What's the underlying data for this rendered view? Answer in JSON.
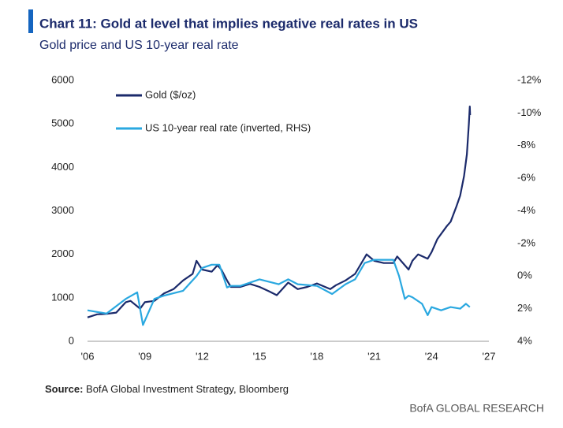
{
  "chart_data": {
    "type": "line",
    "title": "Chart 11: Gold at level that implies negative real rates in US",
    "subtitle": "Gold price and US 10-year real rate",
    "source_label": "Source:",
    "source": "BofA Global Investment Strategy, Bloomberg",
    "brand": "BofA GLOBAL RESEARCH",
    "xlim": [
      2006,
      2027
    ],
    "xticks": [
      {
        "value": 2006,
        "label": "'06"
      },
      {
        "value": 2009,
        "label": "'09"
      },
      {
        "value": 2012,
        "label": "'12"
      },
      {
        "value": 2015,
        "label": "'15"
      },
      {
        "value": 2018,
        "label": "'18"
      },
      {
        "value": 2021,
        "label": "'21"
      },
      {
        "value": 2024,
        "label": "'24"
      },
      {
        "value": 2027,
        "label": "'27"
      }
    ],
    "ylim": [
      0,
      6000
    ],
    "yticks": [
      0,
      1000,
      2000,
      3000,
      4000,
      5000,
      6000
    ],
    "y2lim": [
      4,
      -12
    ],
    "y2ticks": [
      {
        "value": 4,
        "label": "4%"
      },
      {
        "value": 2,
        "label": "2%"
      },
      {
        "value": 0,
        "label": "0%"
      },
      {
        "value": -2,
        "label": "-2%"
      },
      {
        "value": -4,
        "label": "-4%"
      },
      {
        "value": -6,
        "label": "-6%"
      },
      {
        "value": -8,
        "label": "-8%"
      },
      {
        "value": -10,
        "label": "-10%"
      },
      {
        "value": -12,
        "label": "-12%"
      }
    ],
    "grid": false,
    "series": [
      {
        "name": "Gold ($/oz)",
        "color": "#1b2a6b",
        "x": [
          2006,
          2006.5,
          2007,
          2007.5,
          2008,
          2008.25,
          2008.75,
          2009,
          2009.5,
          2010,
          2010.5,
          2011,
          2011.5,
          2011.7,
          2012,
          2012.5,
          2012.8,
          2013,
          2013.3,
          2013.5,
          2014,
          2014.5,
          2015,
          2015.5,
          2015.9,
          2016.5,
          2017,
          2017.5,
          2018,
          2018.7,
          2019,
          2019.5,
          2020,
          2020.6,
          2021,
          2021.5,
          2022,
          2022.2,
          2022.8,
          2023,
          2023.3,
          2023.8,
          2024,
          2024.3,
          2024.8,
          2025,
          2025.3,
          2025.5,
          2025.7,
          2025.85,
          2025.95,
          2026.0,
          2026.02
        ],
        "values": [
          550,
          620,
          630,
          660,
          900,
          930,
          750,
          900,
          930,
          1100,
          1200,
          1400,
          1550,
          1850,
          1650,
          1600,
          1750,
          1650,
          1400,
          1250,
          1250,
          1320,
          1250,
          1150,
          1060,
          1350,
          1200,
          1250,
          1330,
          1200,
          1290,
          1400,
          1550,
          2000,
          1850,
          1800,
          1800,
          1950,
          1650,
          1850,
          2000,
          1900,
          2050,
          2350,
          2650,
          2750,
          3100,
          3350,
          3800,
          4300,
          5000,
          5400,
          5200
        ]
      },
      {
        "name": "US 10-year real rate (inverted, RHS)",
        "color": "#2aa8e0",
        "axis": "y2",
        "x": [
          2006,
          2007,
          2008,
          2008.6,
          2008.9,
          2009.5,
          2010,
          2011,
          2011.7,
          2012,
          2012.5,
          2012.9,
          2013.3,
          2013.5,
          2014,
          2015,
          2016,
          2016.5,
          2017,
          2018,
          2018.8,
          2019.5,
          2020,
          2020.5,
          2021,
          2021.5,
          2022,
          2022.3,
          2022.6,
          2022.8,
          2023,
          2023.5,
          2023.8,
          2024,
          2024.5,
          2025,
          2025.5,
          2025.8,
          2026
        ],
        "values": [
          2.1,
          2.3,
          1.4,
          1.0,
          3.0,
          1.4,
          1.2,
          0.9,
          0,
          -0.5,
          -0.7,
          -0.7,
          0.7,
          0.6,
          0.6,
          0.2,
          0.5,
          0.2,
          0.5,
          0.6,
          1.1,
          0.5,
          0.2,
          -0.8,
          -1.0,
          -1.0,
          -1.0,
          0,
          1.4,
          1.2,
          1.3,
          1.7,
          2.4,
          1.9,
          2.1,
          1.9,
          2.0,
          1.7,
          1.9
        ]
      }
    ]
  }
}
